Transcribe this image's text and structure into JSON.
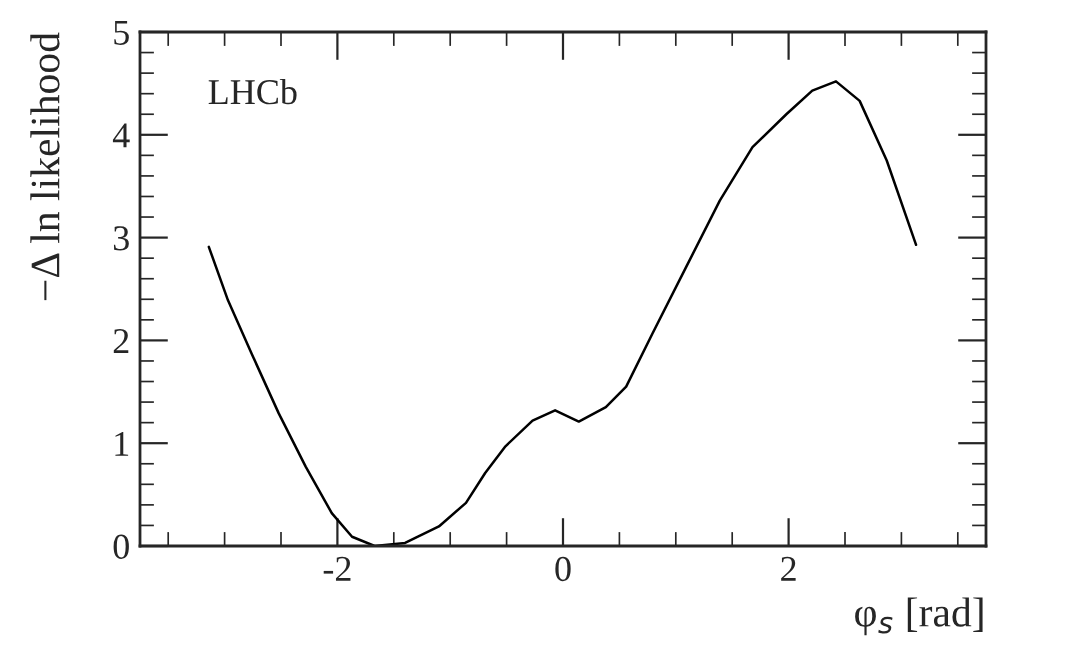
{
  "chart_data": {
    "type": "line",
    "xlabel": "φ$_{s}$ [rad]",
    "ylabel": "−Δ ln likelihood",
    "annotations": [
      "LHCb"
    ],
    "series": [
      {
        "color": "#000000",
        "x": [
          -3.14,
          -2.97,
          -2.76,
          -2.52,
          -2.28,
          -2.05,
          -1.87,
          -1.67,
          -1.4,
          -1.1,
          -0.86,
          -0.69,
          -0.51,
          -0.27,
          -0.07,
          0.14,
          0.38,
          0.56,
          0.79,
          1.09,
          1.39,
          1.68,
          1.98,
          2.21,
          2.42,
          2.63,
          2.87,
          3.13
        ],
        "values": [
          2.91,
          2.39,
          1.87,
          1.29,
          0.77,
          0.32,
          0.09,
          0.0,
          0.03,
          0.19,
          0.42,
          0.71,
          0.97,
          1.22,
          1.32,
          1.21,
          1.35,
          1.55,
          2.06,
          2.71,
          3.36,
          3.88,
          4.2,
          4.43,
          4.52,
          4.33,
          3.75,
          2.93
        ]
      }
    ],
    "xlim": [
      -3.75,
      3.75
    ],
    "xticks": [
      {
        "value": -3.5,
        "label": null
      },
      {
        "value": -3,
        "label": null
      },
      {
        "value": -2.5,
        "label": null
      },
      {
        "value": -2,
        "label": "-2"
      },
      {
        "value": -1.5,
        "label": null
      },
      {
        "value": -1,
        "label": null
      },
      {
        "value": -0.5,
        "label": null
      },
      0,
      {
        "value": 0.5,
        "label": null
      },
      {
        "value": 1,
        "label": null
      },
      {
        "value": 1.5,
        "label": null
      },
      2,
      {
        "value": 2.5,
        "label": null
      },
      {
        "value": 3,
        "label": null
      },
      {
        "value": 3.5,
        "label": null
      }
    ],
    "ylim": [
      0,
      5
    ],
    "yticks": [
      0,
      {
        "value": 0.2,
        "label": null
      },
      {
        "value": 0.4,
        "label": null
      },
      {
        "value": 0.6,
        "label": null
      },
      {
        "value": 0.8,
        "label": null
      },
      1,
      {
        "value": 1.2,
        "label": null
      },
      {
        "value": 1.4,
        "label": null
      },
      {
        "value": 1.6,
        "label": null
      },
      {
        "value": 1.8,
        "label": null
      },
      2,
      {
        "value": 2.2,
        "label": null
      },
      {
        "value": 2.4,
        "label": null
      },
      {
        "value": 2.6,
        "label": null
      },
      {
        "value": 2.8,
        "label": null
      },
      3,
      {
        "value": 3.2,
        "label": null
      },
      {
        "value": 3.4,
        "label": null
      },
      {
        "value": 3.6,
        "label": null
      },
      {
        "value": 3.8,
        "label": null
      },
      4,
      {
        "value": 4.2,
        "label": null
      },
      {
        "value": 4.4,
        "label": null
      },
      {
        "value": 4.6,
        "label": null
      },
      {
        "value": 4.8,
        "label": null
      },
      5
    ],
    "grid": false,
    "legend": false,
    "marker": "none",
    "line_style": "solid"
  }
}
